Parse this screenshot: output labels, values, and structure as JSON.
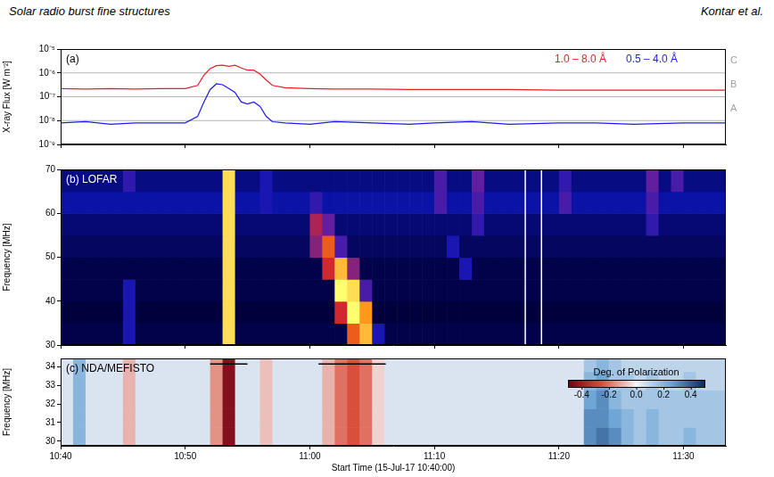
{
  "header": {
    "left": "Solar radio burst fine structures",
    "right": "Kontar et al."
  },
  "chart_data": [
    {
      "type": "line",
      "label": "(a)",
      "y_label": "X-ray Flux [W m⁻²]",
      "log": "y",
      "grid": false,
      "tick_labels": "y",
      "legend": "top right",
      "x": [
        0,
        2,
        4,
        6,
        8,
        10,
        11,
        11.5,
        12,
        12.5,
        13,
        13.5,
        14,
        14.5,
        15,
        15.5,
        16,
        16.5,
        17,
        18,
        20,
        22,
        25,
        28,
        30,
        33,
        36,
        40,
        43,
        46,
        50,
        53.4
      ],
      "xlim": [
        0,
        53.4
      ],
      "xticks": [
        0,
        10,
        20,
        30,
        40,
        50
      ],
      "ylim": [
        1e-09,
        1e-05
      ],
      "yticks": [
        {
          "value": 1e-09,
          "label": "10⁻⁹"
        },
        {
          "value": 1e-08,
          "label": "10⁻⁸"
        },
        {
          "value": 1e-07,
          "label": "10⁻⁷"
        },
        {
          "value": 1e-06,
          "label": "10⁻⁶"
        },
        {
          "value": 1e-05,
          "label": "10⁻⁵"
        }
      ],
      "series": [
        {
          "name": "1.0 – 8.0 Å",
          "color": "#e8202a",
          "values": [
            2.2e-07,
            2.1e-07,
            2.2e-07,
            2.1e-07,
            2.2e-07,
            2.2e-07,
            3e-07,
            8e-07,
            1.5e-06,
            2e-06,
            2.1e-06,
            1.9e-06,
            2.1e-06,
            1.6e-06,
            1.3e-06,
            1.3e-06,
            9e-07,
            5e-07,
            3e-07,
            2.4e-07,
            2.2e-07,
            2.1e-07,
            2.1e-07,
            2e-07,
            2e-07,
            2e-07,
            2e-07,
            1.9e-07,
            1.9e-07,
            1.9e-07,
            1.9e-07,
            1.9e-07
          ]
        },
        {
          "name": "0.5 – 4.0 Å",
          "color": "#1c1cf0",
          "values": [
            8e-09,
            9e-09,
            7e-09,
            8e-09,
            8e-09,
            8e-09,
            1.5e-08,
            6e-08,
            2e-07,
            3.5e-07,
            3.2e-07,
            2.2e-07,
            1.5e-07,
            6e-08,
            5e-08,
            6e-08,
            4e-08,
            1.5e-08,
            9e-09,
            8e-09,
            7e-09,
            9e-09,
            8e-09,
            7e-09,
            8e-09,
            9e-09,
            7e-09,
            8e-09,
            8e-09,
            7e-09,
            8e-09,
            8e-09
          ]
        }
      ],
      "levels": [
        {
          "value": 1e-06,
          "label": "C"
        },
        {
          "value": 1e-07,
          "label": "B"
        },
        {
          "value": 1e-08,
          "label": "A"
        }
      ]
    },
    {
      "type": "heatmap",
      "label": "(b)",
      "title": "LOFAR",
      "y_label": "Frequency [MHz]",
      "tick_labels": "y",
      "xlim": [
        0,
        53.4
      ],
      "xticks": [
        0,
        10,
        20,
        30,
        40,
        50
      ],
      "ylim": [
        30,
        70
      ],
      "yticks": [
        30,
        40,
        50,
        60,
        70
      ],
      "x_edges": [
        0,
        1,
        2,
        3,
        4,
        5,
        6,
        7,
        8,
        9,
        10,
        11,
        12,
        13,
        14,
        15,
        16,
        17,
        18,
        19,
        20,
        21,
        22,
        23,
        24,
        25,
        26,
        27,
        28,
        29,
        30,
        31,
        32,
        33,
        34,
        35,
        36,
        37,
        38,
        39,
        40,
        41,
        42,
        43,
        44,
        45,
        46,
        47,
        48,
        49,
        50,
        51,
        52,
        53,
        54
      ],
      "y_edges": [
        30,
        35,
        40,
        45,
        50,
        55,
        60,
        65,
        70
      ],
      "cells": [
        [
          0.12,
          0.12,
          0.12,
          0.12,
          0.12,
          0.3,
          0.12,
          0.12,
          0.12,
          0.12,
          0.12,
          0.12,
          0.12,
          0.9,
          0.12,
          0.12,
          0.12,
          0.12,
          0.12,
          0.12,
          0.12,
          0.12,
          0.12,
          0.7,
          0.85,
          0.3,
          0.12,
          0.12,
          0.12,
          0.12,
          0.12,
          0.12,
          0.12,
          0.12,
          0.12,
          0.12,
          0.12,
          0.12,
          0.12,
          0.12,
          0.12,
          0.12,
          0.12,
          0.12,
          0.12,
          0.12,
          0.12,
          0.12,
          0.12,
          0.12,
          0.12,
          0.12,
          0.12,
          0.12
        ],
        [
          0.1,
          0.1,
          0.1,
          0.1,
          0.1,
          0.3,
          0.1,
          0.1,
          0.1,
          0.1,
          0.1,
          0.1,
          0.1,
          0.9,
          0.1,
          0.1,
          0.1,
          0.1,
          0.1,
          0.1,
          0.1,
          0.1,
          0.6,
          0.95,
          0.8,
          0.1,
          0.1,
          0.1,
          0.1,
          0.1,
          0.1,
          0.1,
          0.1,
          0.1,
          0.1,
          0.1,
          0.1,
          0.1,
          0.1,
          0.1,
          0.1,
          0.1,
          0.1,
          0.1,
          0.1,
          0.1,
          0.1,
          0.1,
          0.1,
          0.1,
          0.1,
          0.1,
          0.1,
          0.1
        ],
        [
          0.12,
          0.12,
          0.12,
          0.12,
          0.12,
          0.3,
          0.12,
          0.12,
          0.12,
          0.12,
          0.12,
          0.12,
          0.12,
          0.9,
          0.12,
          0.12,
          0.12,
          0.12,
          0.12,
          0.12,
          0.12,
          0.12,
          0.95,
          0.9,
          0.4,
          0.12,
          0.12,
          0.12,
          0.12,
          0.12,
          0.12,
          0.12,
          0.12,
          0.12,
          0.12,
          0.12,
          0.12,
          0.12,
          0.12,
          0.12,
          0.12,
          0.12,
          0.12,
          0.12,
          0.12,
          0.12,
          0.12,
          0.12,
          0.12,
          0.12,
          0.12,
          0.12,
          0.12,
          0.12
        ],
        [
          0.12,
          0.12,
          0.12,
          0.12,
          0.12,
          0.12,
          0.12,
          0.12,
          0.12,
          0.12,
          0.12,
          0.12,
          0.12,
          0.9,
          0.12,
          0.12,
          0.12,
          0.12,
          0.12,
          0.12,
          0.12,
          0.6,
          0.85,
          0.5,
          0.12,
          0.12,
          0.12,
          0.12,
          0.12,
          0.12,
          0.12,
          0.12,
          0.3,
          0.12,
          0.12,
          0.12,
          0.12,
          0.12,
          0.12,
          0.12,
          0.12,
          0.12,
          0.12,
          0.12,
          0.12,
          0.12,
          0.12,
          0.12,
          0.12,
          0.12,
          0.12,
          0.12,
          0.12,
          0.12
        ],
        [
          0.15,
          0.15,
          0.15,
          0.15,
          0.15,
          0.15,
          0.15,
          0.15,
          0.15,
          0.15,
          0.15,
          0.15,
          0.15,
          0.9,
          0.15,
          0.15,
          0.15,
          0.15,
          0.15,
          0.15,
          0.5,
          0.7,
          0.4,
          0.15,
          0.15,
          0.15,
          0.15,
          0.15,
          0.15,
          0.15,
          0.15,
          0.3,
          0.15,
          0.15,
          0.15,
          0.15,
          0.15,
          0.15,
          0.15,
          0.15,
          0.15,
          0.15,
          0.15,
          0.15,
          0.15,
          0.15,
          0.15,
          0.15,
          0.15,
          0.15,
          0.15,
          0.15,
          0.15,
          0.15
        ],
        [
          0.18,
          0.18,
          0.18,
          0.18,
          0.18,
          0.18,
          0.18,
          0.18,
          0.18,
          0.18,
          0.18,
          0.18,
          0.18,
          0.9,
          0.18,
          0.18,
          0.18,
          0.18,
          0.18,
          0.18,
          0.55,
          0.45,
          0.18,
          0.18,
          0.18,
          0.18,
          0.18,
          0.18,
          0.18,
          0.18,
          0.18,
          0.18,
          0.18,
          0.35,
          0.18,
          0.18,
          0.18,
          0.18,
          0.18,
          0.18,
          0.18,
          0.18,
          0.18,
          0.18,
          0.18,
          0.18,
          0.18,
          0.35,
          0.18,
          0.18,
          0.18,
          0.18,
          0.18,
          0.18
        ],
        [
          0.25,
          0.25,
          0.25,
          0.25,
          0.25,
          0.25,
          0.25,
          0.25,
          0.25,
          0.25,
          0.25,
          0.25,
          0.25,
          0.9,
          0.25,
          0.25,
          0.3,
          0.25,
          0.25,
          0.25,
          0.35,
          0.25,
          0.25,
          0.25,
          0.25,
          0.25,
          0.25,
          0.25,
          0.25,
          0.25,
          0.4,
          0.25,
          0.25,
          0.4,
          0.25,
          0.25,
          0.25,
          0.25,
          0.25,
          0.25,
          0.4,
          0.25,
          0.25,
          0.25,
          0.25,
          0.25,
          0.25,
          0.4,
          0.25,
          0.25,
          0.25,
          0.25,
          0.25,
          0.25
        ],
        [
          0.2,
          0.2,
          0.2,
          0.2,
          0.2,
          0.35,
          0.2,
          0.2,
          0.2,
          0.2,
          0.2,
          0.2,
          0.2,
          0.9,
          0.2,
          0.2,
          0.3,
          0.2,
          0.2,
          0.2,
          0.2,
          0.2,
          0.2,
          0.2,
          0.2,
          0.2,
          0.2,
          0.2,
          0.2,
          0.2,
          0.4,
          0.2,
          0.2,
          0.45,
          0.2,
          0.2,
          0.2,
          0.2,
          0.2,
          0.2,
          0.35,
          0.2,
          0.2,
          0.2,
          0.2,
          0.2,
          0.2,
          0.45,
          0.2,
          0.4,
          0.2,
          0.2,
          0.2,
          0.2
        ]
      ],
      "highlight": {
        "x": [
          37.3,
          38.6
        ]
      }
    },
    {
      "type": "heatmap",
      "label": "(c)",
      "title": "NDA/MEFISTO",
      "x_label": "Start Time (15-Jul-17 10:40:00)",
      "y_label": "Frequency [MHz]",
      "xlim": [
        0,
        53.4
      ],
      "xticks": [
        {
          "value": 0,
          "label": "10:40"
        },
        {
          "value": 10,
          "label": "10:50"
        },
        {
          "value": 20,
          "label": "11:00"
        },
        {
          "value": 30,
          "label": "11:10"
        },
        {
          "value": 40,
          "label": "11:20"
        },
        {
          "value": 50,
          "label": "11:30"
        }
      ],
      "ylim": [
        29.75,
        34.45
      ],
      "yticks": [
        30,
        31,
        32,
        33,
        34
      ],
      "x_edges": [
        0,
        1,
        2,
        3,
        4,
        5,
        6,
        7,
        8,
        9,
        10,
        11,
        12,
        13,
        14,
        15,
        16,
        17,
        18,
        19,
        20,
        21,
        22,
        23,
        24,
        25,
        26,
        27,
        28,
        29,
        30,
        31,
        32,
        33,
        34,
        35,
        36,
        37,
        38,
        39,
        40,
        41,
        42,
        43,
        44,
        45,
        46,
        47,
        48,
        49,
        50,
        51,
        52,
        53,
        54
      ],
      "y_edges": [
        29.75,
        30.75,
        31.75,
        32.75,
        33.75,
        34.45
      ],
      "cells": [
        [
          0.05,
          0.2,
          0.05,
          0.05,
          0.05,
          -0.1,
          0.05,
          0.05,
          0.05,
          0.05,
          0.05,
          0.05,
          -0.15,
          -0.45,
          0.05,
          0.05,
          -0.08,
          0.05,
          0.05,
          0.05,
          0.05,
          -0.1,
          -0.2,
          -0.25,
          -0.2,
          -0.05,
          0.05,
          0.05,
          0.05,
          0.05,
          0.05,
          0.05,
          0.05,
          0.05,
          0.05,
          0.05,
          0.05,
          0.05,
          0.05,
          0.05,
          0.05,
          0.05,
          0.3,
          0.35,
          0.3,
          0.2,
          0.15,
          0.2,
          0.15,
          0.15,
          0.2,
          0.15,
          0.15,
          0.15
        ],
        [
          0.05,
          0.2,
          0.05,
          0.05,
          0.05,
          -0.1,
          0.05,
          0.05,
          0.05,
          0.05,
          0.05,
          0.05,
          -0.15,
          -0.45,
          0.05,
          0.05,
          -0.08,
          0.05,
          0.05,
          0.05,
          0.05,
          -0.1,
          -0.2,
          -0.25,
          -0.2,
          -0.05,
          0.05,
          0.05,
          0.05,
          0.05,
          0.05,
          0.05,
          0.05,
          0.05,
          0.05,
          0.05,
          0.05,
          0.05,
          0.05,
          0.05,
          0.05,
          0.05,
          0.3,
          0.3,
          0.25,
          0.2,
          0.15,
          0.2,
          0.15,
          0.15,
          0.15,
          0.15,
          0.15,
          0.15
        ],
        [
          0.05,
          0.2,
          0.05,
          0.05,
          0.05,
          -0.1,
          0.05,
          0.05,
          0.05,
          0.05,
          0.05,
          0.05,
          -0.15,
          -0.45,
          0.05,
          0.05,
          -0.08,
          0.05,
          0.05,
          0.05,
          0.05,
          -0.1,
          -0.2,
          -0.25,
          -0.2,
          -0.05,
          0.05,
          0.05,
          0.05,
          0.05,
          0.05,
          0.05,
          0.05,
          0.05,
          0.05,
          0.05,
          0.05,
          0.05,
          0.05,
          0.05,
          0.05,
          0.05,
          0.25,
          0.3,
          0.2,
          0.15,
          0.15,
          0.15,
          0.15,
          0.15,
          0.15,
          0.15,
          0.15,
          0.15
        ],
        [
          0.05,
          0.2,
          0.05,
          0.05,
          0.05,
          -0.1,
          0.05,
          0.05,
          0.05,
          0.05,
          0.05,
          0.05,
          -0.15,
          -0.45,
          0.05,
          0.05,
          -0.08,
          0.05,
          0.05,
          0.05,
          0.05,
          -0.1,
          -0.2,
          -0.25,
          -0.2,
          -0.05,
          0.05,
          0.05,
          0.05,
          0.05,
          0.05,
          0.05,
          0.05,
          0.05,
          0.05,
          0.05,
          0.05,
          0.05,
          0.05,
          0.05,
          0.05,
          0.05,
          0.2,
          0.25,
          0.15,
          0.15,
          0.1,
          0.15,
          0.1,
          0.1,
          0.15,
          0.1,
          0.1,
          0.1
        ],
        [
          0.05,
          0.2,
          0.05,
          0.05,
          0.05,
          -0.1,
          0.05,
          0.05,
          0.05,
          0.05,
          0.05,
          0.05,
          -0.15,
          -0.45,
          0.05,
          0.05,
          -0.08,
          0.05,
          0.05,
          0.05,
          0.05,
          -0.1,
          -0.2,
          -0.25,
          -0.2,
          -0.05,
          0.05,
          0.05,
          0.05,
          0.05,
          0.05,
          0.05,
          0.05,
          0.05,
          0.05,
          0.05,
          0.05,
          0.05,
          0.05,
          0.05,
          0.05,
          0.05,
          0.15,
          0.2,
          0.15,
          0.1,
          0.1,
          0.1,
          0.1,
          0.1,
          0.1,
          0.1,
          0.1,
          0.1
        ]
      ],
      "segments": [
        {
          "x": [
            12,
            15
          ],
          "y": 34.15
        },
        {
          "x": [
            20.7,
            26.1
          ],
          "y": 34.15
        }
      ],
      "colorbar": {
        "title": "Deg. of Polarization",
        "range": [
          -0.5,
          0.5
        ],
        "ticks": [
          -0.4,
          -0.2,
          {
            "value": 0,
            "label": "0.0"
          },
          0.2,
          0.4
        ]
      }
    }
  ]
}
